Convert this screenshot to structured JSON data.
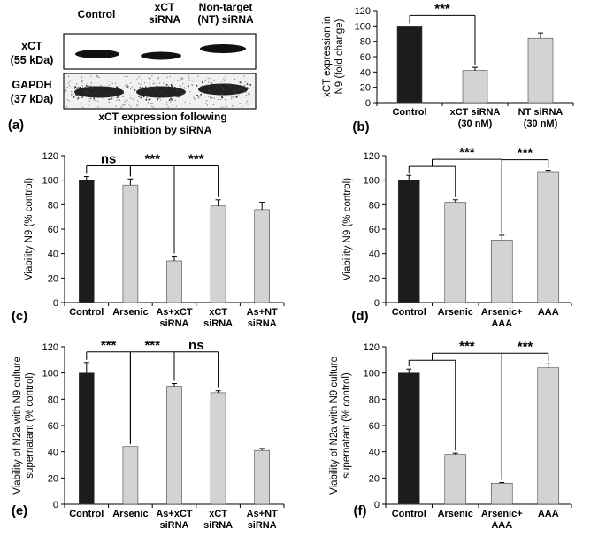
{
  "blot": {
    "headers": [
      "Control",
      "xCT siRNA",
      "Non-target (NT) siRNA"
    ],
    "header_lines": [
      [
        "Control"
      ],
      [
        "xCT",
        "siRNA"
      ],
      [
        "Non-target",
        "(NT) siRNA"
      ]
    ],
    "row1": [
      "xCT",
      "(55 kDa)"
    ],
    "row2": [
      "GAPDH",
      "(37 kDa)"
    ],
    "caption": [
      "xCT expression following",
      "inhibition by siRNA"
    ],
    "label": "(a)"
  },
  "chart_data": [
    {
      "id": "b",
      "label": "(b)",
      "type": "bar",
      "categories": [
        "Control",
        "xCT siRNA (30 nM)",
        "NT siRNA (30 nM)"
      ],
      "category_lines": [
        [
          "Control"
        ],
        [
          "xCT siRNA",
          "(30 nM)"
        ],
        [
          "NT siRNA",
          "(30 nM)"
        ]
      ],
      "values": [
        100,
        42,
        84
      ],
      "errors": [
        0,
        4,
        7
      ],
      "colors": [
        "#1c1c1c",
        "#d3d3d3",
        "#d3d3d3"
      ],
      "ylabel": [
        "xCT expression in",
        "N9 (fold change)"
      ],
      "ylim": [
        0,
        120
      ],
      "yticks": [
        0,
        20,
        40,
        60,
        80,
        100,
        120
      ],
      "significance": [
        {
          "from": 0,
          "to": 1,
          "label": "***"
        }
      ]
    },
    {
      "id": "c",
      "label": "(c)",
      "type": "bar",
      "categories": [
        "Control",
        "Arsenic",
        "As+xCT siRNA",
        "xCT siRNA",
        "As+NT siRNA"
      ],
      "category_lines": [
        [
          "Control"
        ],
        [
          "Arsenic"
        ],
        [
          "As+xCT",
          "siRNA"
        ],
        [
          "xCT",
          "siRNA"
        ],
        [
          "As+NT",
          "siRNA"
        ]
      ],
      "values": [
        100,
        96,
        34,
        79,
        76
      ],
      "errors": [
        3,
        5,
        4,
        5,
        6
      ],
      "colors": [
        "#1c1c1c",
        "#d3d3d3",
        "#d3d3d3",
        "#d3d3d3",
        "#d3d3d3"
      ],
      "ylabel": [
        "Viability N9 (% control)"
      ],
      "ylim": [
        0,
        120
      ],
      "yticks": [
        0,
        20,
        40,
        60,
        80,
        100,
        120
      ],
      "significance": [
        {
          "from": 0,
          "to": 1,
          "label": "ns"
        },
        {
          "from": 1,
          "to": 2,
          "label": "***"
        },
        {
          "from": 2,
          "to": 3,
          "label": "***"
        }
      ]
    },
    {
      "id": "d",
      "label": "(d)",
      "type": "bar",
      "categories": [
        "Control",
        "Arsenic",
        "Arsenic+ AAA",
        "AAA"
      ],
      "category_lines": [
        [
          "Control"
        ],
        [
          "Arsenic"
        ],
        [
          "Arsenic+",
          "AAA"
        ],
        [
          "AAA"
        ]
      ],
      "values": [
        100,
        82,
        51,
        107
      ],
      "errors": [
        4,
        2,
        4,
        1
      ],
      "colors": [
        "#1c1c1c",
        "#d3d3d3",
        "#d3d3d3",
        "#d3d3d3"
      ],
      "ylabel": [
        "Viability N9 (% control)"
      ],
      "ylim": [
        0,
        120
      ],
      "yticks": [
        0,
        20,
        40,
        60,
        80,
        100,
        120
      ],
      "significance": [
        {
          "groupFrom": [
            0,
            1
          ],
          "to": 2,
          "label": "***"
        },
        {
          "from": 2,
          "to": 3,
          "label": "***"
        }
      ]
    },
    {
      "id": "e",
      "label": "(e)",
      "type": "bar",
      "categories": [
        "Control",
        "Arsenic",
        "As+xCT siRNA",
        "xCT siRNA",
        "As+NT siRNA"
      ],
      "category_lines": [
        [
          "Control"
        ],
        [
          "Arsenic"
        ],
        [
          "As+xCT",
          "siRNA"
        ],
        [
          "xCT",
          "siRNA"
        ],
        [
          "As+NT",
          "siRNA"
        ]
      ],
      "values": [
        100,
        44,
        90,
        85,
        41
      ],
      "errors": [
        8,
        0,
        2,
        1.5,
        1.5
      ],
      "colors": [
        "#1c1c1c",
        "#d3d3d3",
        "#d3d3d3",
        "#d3d3d3",
        "#d3d3d3"
      ],
      "ylabel": [
        "Viability of N2a with N9 culture",
        "supernatant (% control)"
      ],
      "ylim": [
        0,
        120
      ],
      "yticks": [
        0,
        20,
        40,
        60,
        80,
        100,
        120
      ],
      "significance": [
        {
          "from": 0,
          "to": 1,
          "label": "***"
        },
        {
          "from": 1,
          "to": 2,
          "label": "***"
        },
        {
          "from": 2,
          "to": 3,
          "label": "ns"
        }
      ]
    },
    {
      "id": "f",
      "label": "(f)",
      "type": "bar",
      "categories": [
        "Control",
        "Arsenic",
        "Arsenic+ AAA",
        "AAA"
      ],
      "category_lines": [
        [
          "Control"
        ],
        [
          "Arsenic"
        ],
        [
          "Arsenic+",
          "AAA"
        ],
        [
          "AAA"
        ]
      ],
      "values": [
        100,
        38,
        16,
        104
      ],
      "errors": [
        3,
        1,
        0.5,
        3
      ],
      "colors": [
        "#1c1c1c",
        "#d3d3d3",
        "#d3d3d3",
        "#d3d3d3"
      ],
      "ylabel": [
        "Viability of N2a with N9 culture",
        "supernatant (% control)"
      ],
      "ylim": [
        0,
        120
      ],
      "yticks": [
        0,
        20,
        40,
        60,
        80,
        100,
        120
      ],
      "significance": [
        {
          "groupFrom": [
            0,
            1
          ],
          "to": 2,
          "label": "***"
        },
        {
          "from": 2,
          "to": 3,
          "label": "***"
        }
      ]
    }
  ]
}
